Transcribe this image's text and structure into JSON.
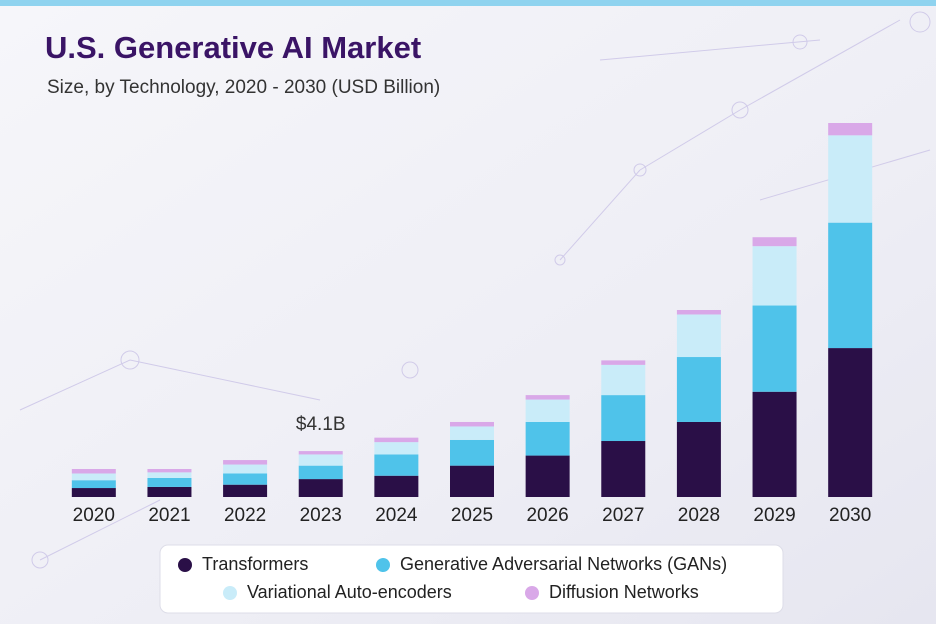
{
  "chart_data": {
    "type": "stacked-bar",
    "title": "U.S. Generative AI Market",
    "subtitle": "Size, by Technology, 2020 - 2030 (USD Billion)",
    "categories": [
      "2020",
      "2021",
      "2022",
      "2023",
      "2024",
      "2025",
      "2026",
      "2027",
      "2028",
      "2029",
      "2030"
    ],
    "series": [
      {
        "name": "Transformers",
        "color": "#2a0f47",
        "values": [
          0.8,
          0.9,
          1.1,
          1.6,
          1.9,
          2.8,
          3.7,
          5.0,
          6.7,
          9.4,
          13.3
        ]
      },
      {
        "name": "Generative Adversarial Networks (GANs)",
        "color": "#4fc3ea",
        "values": [
          0.7,
          0.8,
          1.0,
          1.2,
          1.9,
          2.3,
          3.0,
          4.1,
          5.8,
          7.7,
          11.2
        ]
      },
      {
        "name": "Variational Auto-encoders",
        "color": "#c9ecf9",
        "values": [
          0.6,
          0.5,
          0.8,
          1.0,
          1.1,
          1.2,
          2.0,
          2.7,
          3.8,
          5.3,
          7.8
        ]
      },
      {
        "name": "Diffusion Networks",
        "color": "#d9a8e8",
        "values": [
          0.4,
          0.3,
          0.4,
          0.3,
          0.4,
          0.4,
          0.4,
          0.4,
          0.4,
          0.8,
          1.1
        ]
      }
    ],
    "annotations": [
      {
        "x": "2023",
        "label": "$4.1B",
        "value": 4.1
      }
    ]
  }
}
